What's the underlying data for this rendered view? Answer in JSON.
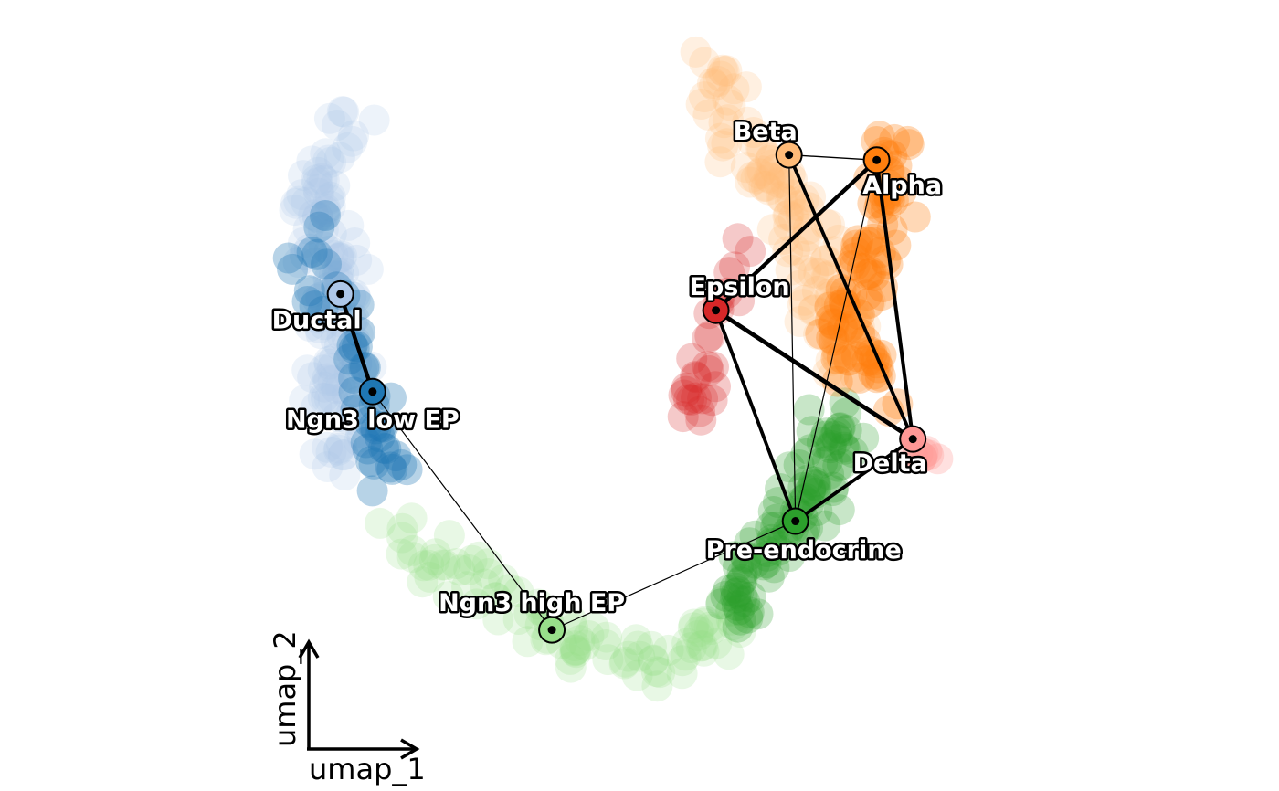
{
  "chart_data": {
    "type": "scatter",
    "title": "",
    "xlabel": "umap_1",
    "ylabel": "umap_2",
    "xlim": [
      0,
      10
    ],
    "ylim": [
      0,
      10
    ],
    "clusters": [
      {
        "name": "Ductal",
        "color": "#aec7e8",
        "center": [
          1.3,
          6.5
        ],
        "count": 130,
        "path": [
          [
            1.3,
            9.0
          ],
          [
            0.9,
            7.8
          ],
          [
            1.3,
            6.8
          ],
          [
            1.2,
            5.5
          ],
          [
            1.3,
            4.2
          ]
        ],
        "spread": 0.32,
        "alpha": 0.22
      },
      {
        "name": "Ngn3 low EP",
        "color": "#1f77b4",
        "center": [
          1.65,
          5.0
        ],
        "count": 45,
        "path": [
          [
            0.9,
            7.3
          ],
          [
            1.6,
            5.2
          ],
          [
            1.9,
            4.1
          ]
        ],
        "spread": 0.3,
        "alpha": 0.32
      },
      {
        "name": "Ngn3 high EP",
        "color": "#98df8a",
        "center": [
          4.1,
          1.9
        ],
        "count": 100,
        "path": [
          [
            2.0,
            3.3
          ],
          [
            3.0,
            2.6
          ],
          [
            4.2,
            1.8
          ],
          [
            5.3,
            1.5
          ],
          [
            6.3,
            2.2
          ]
        ],
        "spread": 0.26,
        "alpha": 0.22
      },
      {
        "name": "Pre-endocrine",
        "color": "#2ca02c",
        "center": [
          7.0,
          3.3
        ],
        "count": 100,
        "path": [
          [
            6.1,
            2.2
          ],
          [
            6.6,
            3.0
          ],
          [
            7.2,
            3.9
          ],
          [
            7.4,
            4.8
          ]
        ],
        "spread": 0.32,
        "alpha": 0.26
      },
      {
        "name": "Beta",
        "color": "#ffbb78",
        "center": [
          6.8,
          8.0
        ],
        "count": 120,
        "path": [
          [
            6.0,
            9.6
          ],
          [
            6.2,
            8.5
          ],
          [
            6.8,
            7.8
          ],
          [
            7.3,
            6.6
          ],
          [
            7.6,
            5.6
          ]
        ],
        "spread": 0.3,
        "alpha": 0.22
      },
      {
        "name": "Alpha",
        "color": "#ff7f0e",
        "center": [
          7.9,
          7.9
        ],
        "count": 90,
        "path": [
          [
            8.1,
            8.6
          ],
          [
            8.0,
            7.4
          ],
          [
            7.6,
            6.3
          ],
          [
            7.9,
            5.3
          ]
        ],
        "spread": 0.3,
        "alpha": 0.3
      },
      {
        "name": "Epsilon",
        "color": "#d62728",
        "center": [
          5.9,
          6.2
        ],
        "count": 30,
        "path": [
          [
            6.3,
            7.1
          ],
          [
            5.9,
            6.1
          ],
          [
            5.6,
            4.8
          ]
        ],
        "spread": 0.2,
        "alpha": 0.25
      },
      {
        "name": "Delta",
        "color": "#ff9896",
        "center": [
          8.5,
          4.3
        ],
        "count": 8,
        "path": [
          [
            8.4,
            4.3
          ],
          [
            8.7,
            4.3
          ]
        ],
        "spread": 0.1,
        "alpha": 0.3
      }
    ],
    "nodes": [
      {
        "name": "Ductal",
        "color": "#aec7e8",
        "x": 1.28,
        "y": 6.52
      },
      {
        "name": "Ngn3 low EP",
        "color": "#1f77b4",
        "x": 1.68,
        "y": 5.2
      },
      {
        "name": "Ngn3 high EP",
        "color": "#98df8a",
        "x": 3.91,
        "y": 1.98
      },
      {
        "name": "Pre-endocrine",
        "color": "#2ca02c",
        "x": 6.94,
        "y": 3.45
      },
      {
        "name": "Beta",
        "color": "#ffbb78",
        "x": 6.86,
        "y": 8.4
      },
      {
        "name": "Alpha",
        "color": "#ff7f0e",
        "x": 7.95,
        "y": 8.33
      },
      {
        "name": "Epsilon",
        "color": "#d62728",
        "x": 5.95,
        "y": 6.3
      },
      {
        "name": "Delta",
        "color": "#ff9896",
        "x": 8.4,
        "y": 4.56
      }
    ],
    "edges": [
      {
        "source": "Ductal",
        "target": "Ngn3 low EP",
        "weight": 0.9
      },
      {
        "source": "Ngn3 low EP",
        "target": "Ngn3 high EP",
        "weight": 0.1
      },
      {
        "source": "Ngn3 high EP",
        "target": "Pre-endocrine",
        "weight": 0.1
      },
      {
        "source": "Pre-endocrine",
        "target": "Epsilon",
        "weight": 0.75
      },
      {
        "source": "Pre-endocrine",
        "target": "Delta",
        "weight": 0.75
      },
      {
        "source": "Pre-endocrine",
        "target": "Beta",
        "weight": 0.1
      },
      {
        "source": "Pre-endocrine",
        "target": "Alpha",
        "weight": 0.1
      },
      {
        "source": "Epsilon",
        "target": "Alpha",
        "weight": 0.9
      },
      {
        "source": "Epsilon",
        "target": "Delta",
        "weight": 1.0
      },
      {
        "source": "Beta",
        "target": "Alpha",
        "weight": 0.15
      },
      {
        "source": "Beta",
        "target": "Delta",
        "weight": 0.75
      },
      {
        "source": "Alpha",
        "target": "Delta",
        "weight": 0.8
      }
    ]
  }
}
